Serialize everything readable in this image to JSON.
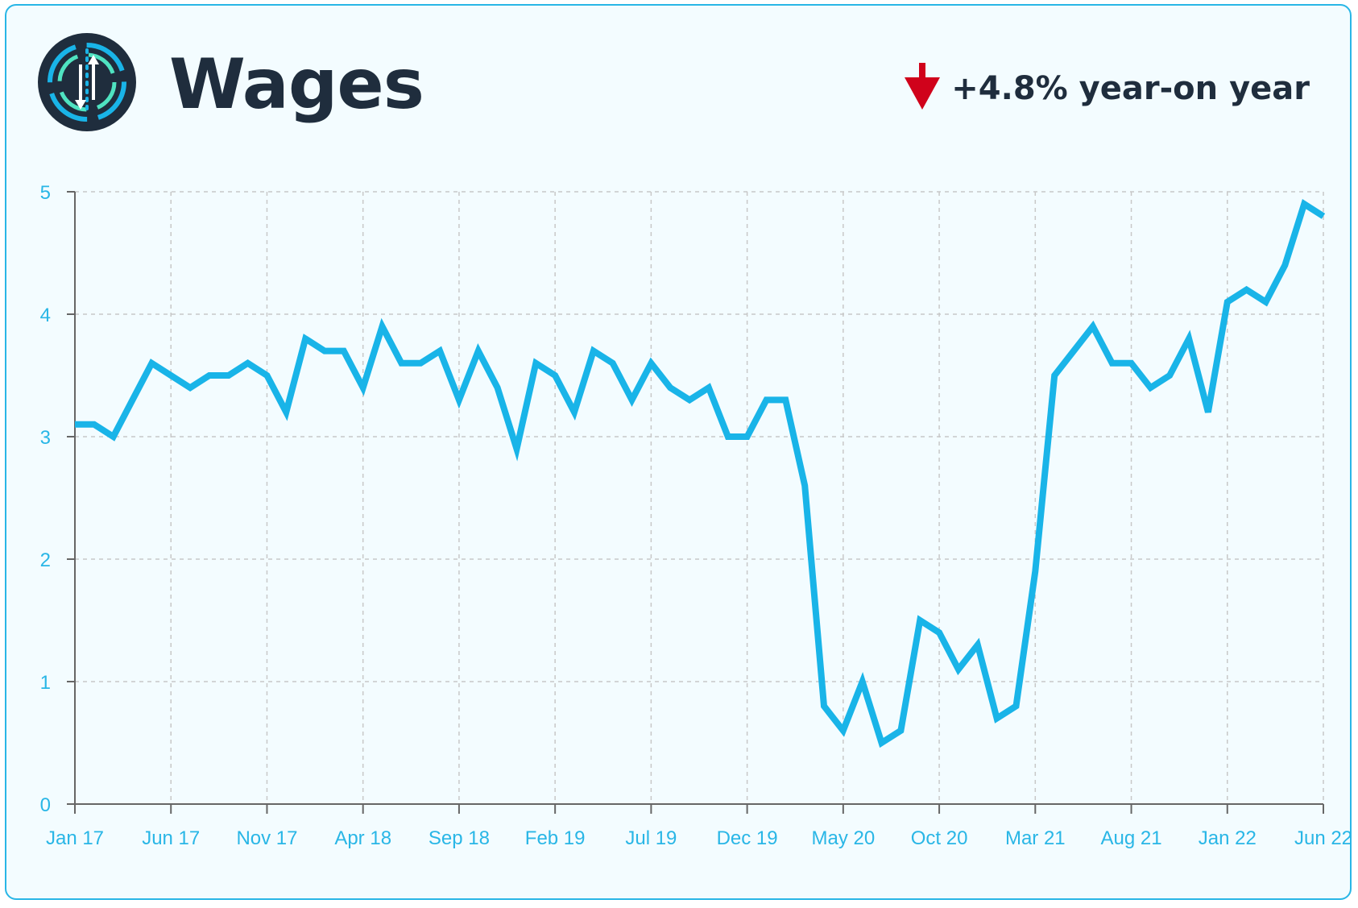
{
  "header": {
    "title": "Wages",
    "change_text": "+4.8% year-on year",
    "change_direction": "down",
    "logo_icon": "wages-logo-icon"
  },
  "colors": {
    "line": "#19b4e8",
    "axis_text": "#29b6e6",
    "title": "#1f2d3d",
    "down_arrow": "#d0021b",
    "card_border": "#29b6e6",
    "card_bg": "#f3fcff"
  },
  "chart_data": {
    "type": "line",
    "title": "Wages",
    "xlabel": "",
    "ylabel": "",
    "ylim": [
      0,
      5
    ],
    "yticks": [
      0,
      1,
      2,
      3,
      4,
      5
    ],
    "grid": true,
    "x_tick_labels": [
      "Jan 17",
      "Jun 17",
      "Nov 17",
      "Apr 18",
      "Sep 18",
      "Feb 19",
      "Jul 19",
      "Dec 19",
      "May 20",
      "Oct 20",
      "Mar 21",
      "Aug 21",
      "Jan 22",
      "Jun 22"
    ],
    "x_start": "Jan 17",
    "x_end": "Jun 22",
    "series": [
      {
        "name": "",
        "values": [
          3.1,
          3.1,
          3.0,
          3.3,
          3.6,
          3.5,
          3.4,
          3.5,
          3.5,
          3.6,
          3.5,
          3.2,
          3.8,
          3.7,
          3.7,
          3.4,
          3.9,
          3.6,
          3.6,
          3.7,
          3.3,
          3.7,
          3.4,
          2.9,
          3.6,
          3.5,
          3.2,
          3.7,
          3.6,
          3.3,
          3.6,
          3.4,
          3.3,
          3.4,
          3.0,
          3.0,
          3.3,
          3.3,
          2.6,
          0.8,
          0.6,
          1.0,
          0.5,
          0.6,
          1.5,
          1.4,
          1.1,
          1.3,
          0.7,
          0.8,
          1.9,
          3.5,
          3.7,
          3.9,
          3.6,
          3.6,
          3.4,
          3.5,
          3.8,
          3.2,
          4.1,
          4.2,
          4.1,
          4.4,
          4.9,
          4.8
        ]
      }
    ]
  }
}
